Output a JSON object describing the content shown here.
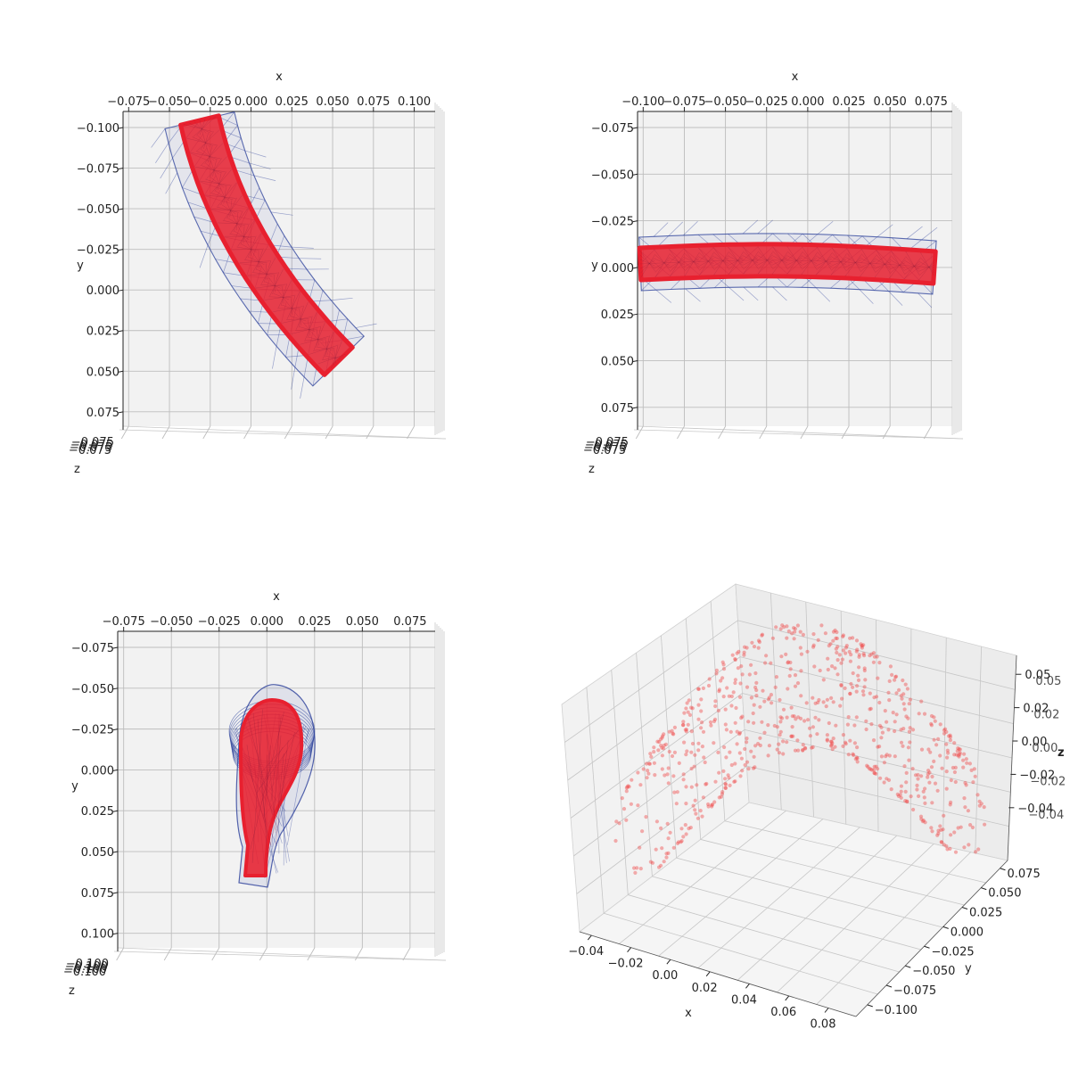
{
  "chart_data": [
    {
      "type": "scatter",
      "view": "top (x-y plane), mesh and hull",
      "xlabel": "x",
      "ylabel": "y",
      "zlabel": "z",
      "x_ticks": [
        "−0.075",
        "−0.050",
        "−0.025",
        "0.000",
        "0.025",
        "0.050",
        "0.075",
        "0.100"
      ],
      "y_ticks": [
        "−0.100",
        "−0.075",
        "−0.050",
        "−0.025",
        "0.000",
        "0.025",
        "0.050",
        "0.075"
      ],
      "z_tick_cluster": "−0.075",
      "xlim": [
        -0.075,
        0.1
      ],
      "ylim": [
        -0.1,
        0.08
      ],
      "grid": true,
      "colors": {
        "mesh": "#e8202f",
        "hull": "#2a3f9a",
        "pane": "#f2f2f2"
      }
    },
    {
      "type": "scatter",
      "view": "top (x-y plane), mesh and hull",
      "xlabel": "x",
      "ylabel": "y",
      "zlabel": "z",
      "x_ticks": [
        "−0.100",
        "−0.075",
        "−0.050",
        "−0.025",
        "0.000",
        "0.025",
        "0.050",
        "0.075"
      ],
      "y_ticks": [
        "−0.075",
        "−0.050",
        "−0.025",
        "0.000",
        "0.025",
        "0.050",
        "0.075"
      ],
      "z_tick_cluster": "−0.075",
      "xlim": [
        -0.1,
        0.08
      ],
      "ylim": [
        -0.075,
        0.08
      ],
      "grid": true,
      "colors": {
        "mesh": "#e8202f",
        "hull": "#2a3f9a",
        "pane": "#f2f2f2"
      }
    },
    {
      "type": "scatter",
      "view": "top (x-y plane), mesh and hull",
      "xlabel": "x",
      "ylabel": "y",
      "zlabel": "z",
      "x_ticks": [
        "−0.075",
        "−0.050",
        "−0.025",
        "0.000",
        "0.025",
        "0.050",
        "0.075"
      ],
      "y_ticks": [
        "−0.075",
        "−0.050",
        "−0.025",
        "0.000",
        "0.025",
        "0.050",
        "0.075",
        "0.100"
      ],
      "z_tick_cluster": "−0.100",
      "xlim": [
        -0.09,
        0.09
      ],
      "ylim": [
        -0.075,
        0.1
      ],
      "grid": true,
      "colors": {
        "mesh": "#e8202f",
        "hull": "#2a3f9a",
        "pane": "#f2f2f2"
      }
    },
    {
      "type": "scatter",
      "view": "3d perspective point cloud",
      "xlabel": "x",
      "ylabel": "y",
      "zlabel": "z",
      "x_ticks": [
        "−0.04",
        "−0.02",
        "0.00",
        "0.02",
        "0.04",
        "0.06",
        "0.08"
      ],
      "y_ticks": [
        "0.075",
        "0.050",
        "0.025",
        "0.000",
        "−0.025",
        "−0.050",
        "−0.075",
        "−0.100"
      ],
      "z_ticks": [
        "0.05",
        "0.02",
        "0.00",
        "−0.02",
        "−0.04"
      ],
      "xlim": [
        -0.05,
        0.085
      ],
      "ylim": [
        -0.105,
        0.09
      ],
      "grid": true,
      "point_count": 700,
      "colors": {
        "points": "#f05050",
        "pane": "#f2f2f2"
      }
    }
  ]
}
